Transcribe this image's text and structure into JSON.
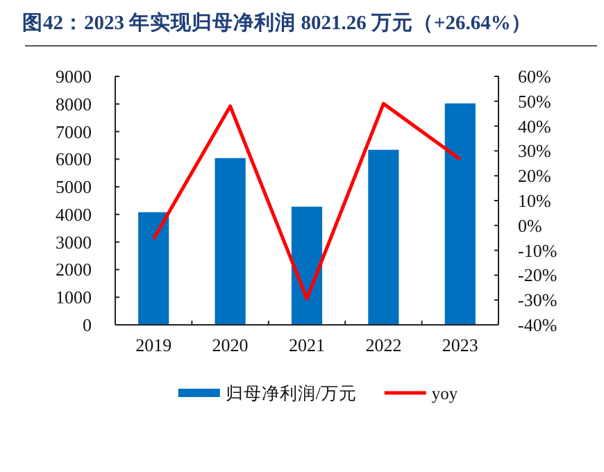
{
  "chart_data": {
    "type": "bar",
    "title": "图42：2023 年实现归母净利润 8021.26 万元（+26.64%）",
    "categories": [
      "2019",
      "2020",
      "2021",
      "2022",
      "2023"
    ],
    "series": [
      {
        "name": "归母净利润/万元",
        "color": "#0070c0",
        "values": [
          4080,
          6040,
          4280,
          6340,
          8020
        ]
      },
      {
        "name": "yoy",
        "type": "line",
        "axis": "y2",
        "color": "#ff0000",
        "values": [
          -5.4,
          48,
          -29.5,
          49,
          26.6
        ]
      }
    ],
    "ylim": [
      0,
      9000
    ],
    "yticks": [
      0,
      1000,
      2000,
      3000,
      4000,
      5000,
      6000,
      7000,
      8000,
      9000
    ],
    "y2lim": [
      -40,
      60
    ],
    "y2ticks": [
      {
        "value": -40,
        "label": "-40%"
      },
      {
        "value": -30,
        "label": "-30%"
      },
      {
        "value": -20,
        "label": "-20%"
      },
      {
        "value": -10,
        "label": "-10%"
      },
      {
        "value": 0,
        "label": "0%"
      },
      {
        "value": 10,
        "label": "10%"
      },
      {
        "value": 20,
        "label": "20%"
      },
      {
        "value": 30,
        "label": "30%"
      },
      {
        "value": 40,
        "label": "40%"
      },
      {
        "value": 50,
        "label": "50%"
      },
      {
        "value": 60,
        "label": "60%"
      }
    ],
    "legend": "bottom",
    "grid": false
  }
}
